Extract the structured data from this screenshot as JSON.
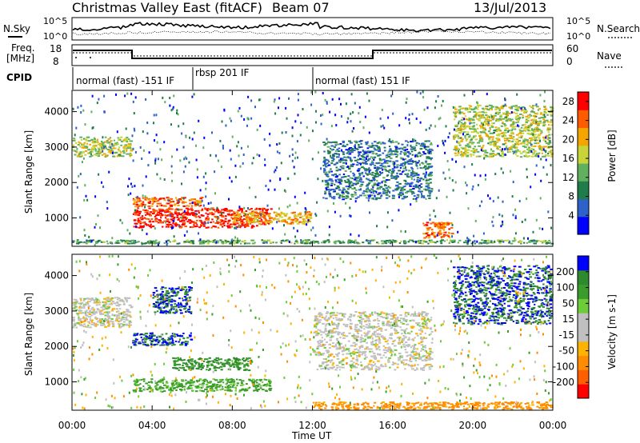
{
  "header": {
    "title": "Christmas Valley East (fitACF)",
    "beam": "Beam 07",
    "date": "13/Jul/2013"
  },
  "panels": {
    "nsky_label": "N.Sky",
    "nsearch_label": "N.Search",
    "noise_left_ticks": [
      "10^5",
      "10^0"
    ],
    "noise_right_ticks": [
      "10^5",
      "10^0"
    ],
    "freq_label_1": "Freq.",
    "freq_label_2": "[MHz]",
    "freq_ticks": [
      "18",
      "8"
    ],
    "nave_label": "Nave",
    "nave_ticks": [
      "60",
      "0"
    ],
    "cpid_label": "CPID",
    "cpid_segments": [
      {
        "label": "normal (fast) -151 IF",
        "start": "00:00",
        "end": "06:00"
      },
      {
        "label": "rbsp 201 IF",
        "start": "06:00",
        "end": "12:00"
      },
      {
        "label": "normal (fast) 151 IF",
        "start": "12:00",
        "end": "24:00"
      }
    ]
  },
  "colors": {
    "power": [
      "#0000ff",
      "#2d62c8",
      "#1f7d4a",
      "#60b060",
      "#c8d438",
      "#f5a500",
      "#ff5c00",
      "#ff0000"
    ],
    "velocity": [
      "#ff0000",
      "#ff5f00",
      "#ff8c00",
      "#ffb200",
      "#c0c0c0",
      "#c0c0c0",
      "#6ccc3a",
      "#3a9c2a",
      "#2d8a2d",
      "#0000ff"
    ]
  },
  "chart_data": [
    {
      "type": "heatmap",
      "panel": "power",
      "ylabel": "Slant Range [km]",
      "yticks": [
        "1000",
        "2000",
        "3000",
        "4000"
      ],
      "ylim": [
        200,
        4600
      ],
      "xlim": [
        "00:00",
        "24:00"
      ],
      "colorbar": {
        "label": "Power [dB]",
        "ticks": [
          "4",
          "8",
          "12",
          "16",
          "20",
          "24",
          "28"
        ],
        "range": [
          0,
          30
        ]
      },
      "features": [
        {
          "start": "00:00",
          "end": "03:00",
          "range_km": [
            2700,
            3300
          ],
          "power_db": 16
        },
        {
          "start": "03:00",
          "end": "06:30",
          "range_km": [
            1300,
            1600
          ],
          "power_db": 24
        },
        {
          "start": "03:00",
          "end": "10:00",
          "range_km": [
            700,
            1300
          ],
          "power_db": 28
        },
        {
          "start": "08:00",
          "end": "12:00",
          "range_km": [
            800,
            1200
          ],
          "power_db": 20
        },
        {
          "start": "12:30",
          "end": "18:00",
          "range_km": [
            1500,
            3200
          ],
          "power_db": 8
        },
        {
          "start": "17:30",
          "end": "19:00",
          "range_km": [
            400,
            900
          ],
          "power_db": 24
        },
        {
          "start": "19:00",
          "end": "24:00",
          "range_km": [
            2700,
            4200
          ],
          "power_db": 16
        },
        {
          "start": "00:00",
          "end": "24:00",
          "range_km": [
            250,
            400
          ],
          "power_db": 12
        }
      ]
    },
    {
      "type": "heatmap",
      "panel": "velocity",
      "ylabel": "Slant Range [km]",
      "yticks": [
        "1000",
        "2000",
        "3000",
        "4000"
      ],
      "ylim": [
        200,
        4600
      ],
      "xlim": [
        "00:00",
        "24:00"
      ],
      "xticks": [
        "00:00",
        "04:00",
        "08:00",
        "12:00",
        "16:00",
        "20:00",
        "00:00"
      ],
      "xlabel": "Time UT",
      "colorbar": {
        "label": "Velocity [m s-1]",
        "ticks": [
          "200",
          "100",
          "50",
          "15",
          "-15",
          "-50",
          "-100",
          "-200"
        ],
        "range": [
          -250,
          250
        ]
      },
      "features": [
        {
          "start": "00:00",
          "end": "03:00",
          "range_km": [
            2500,
            3400
          ],
          "velocity": 0
        },
        {
          "start": "03:00",
          "end": "06:00",
          "range_km": [
            2000,
            2400
          ],
          "velocity": 200
        },
        {
          "start": "04:00",
          "end": "06:00",
          "range_km": [
            2900,
            3700
          ],
          "velocity": 200
        },
        {
          "start": "03:00",
          "end": "10:00",
          "range_km": [
            700,
            1100
          ],
          "velocity": 60
        },
        {
          "start": "05:00",
          "end": "09:00",
          "range_km": [
            1300,
            1700
          ],
          "velocity": 100
        },
        {
          "start": "12:00",
          "end": "18:00",
          "range_km": [
            1300,
            3000
          ],
          "velocity": 0
        },
        {
          "start": "19:00",
          "end": "24:00",
          "range_km": [
            2600,
            4300
          ],
          "velocity": 200
        },
        {
          "start": "12:00",
          "end": "24:00",
          "range_km": [
            200,
            450
          ],
          "velocity": -60
        }
      ]
    }
  ],
  "footer": {
    "xlabel": "Time UT",
    "xticks": [
      "00:00",
      "04:00",
      "08:00",
      "12:00",
      "16:00",
      "20:00",
      "00:00"
    ]
  }
}
